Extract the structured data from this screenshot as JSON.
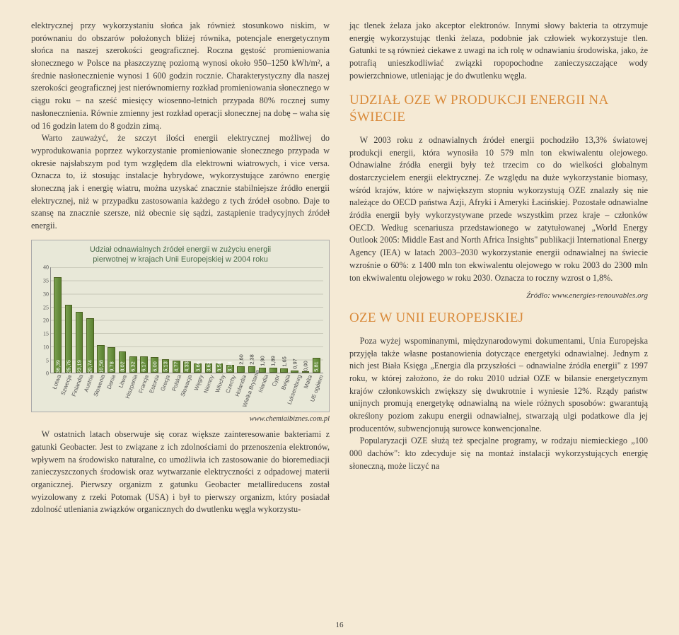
{
  "left": {
    "p1": "elektrycznej przy wykorzystaniu słońca jak również stosunkowo niskim, w porównaniu do obszarów położonych bliżej równika, potencjale energetycznym słońca na naszej szerokości geograficznej. Roczna gęstość promieniowania słonecznego w Polsce na płaszczyznę poziomą wynosi około 950–1250 kWh/m², a średnie nasłonecznienie wynosi 1 600 godzin rocznie. Charakterystyczny dla naszej szerokości geograficznej jest nierównomierny rozkład promieniowania słonecznego w ciągu roku – na sześć miesięcy wiosenno-letnich przypada 80% rocznej sumy nasłonecznienia. Równie zmienny jest rozkład operacji słonecznej na dobę – waha się od 16 godzin latem do 8 godzin zimą.",
    "p2": "Warto zauważyć, że szczyt ilości energii elektrycznej możliwej do wyprodukowania poprzez wykorzystanie promieniowanie słonecznego przypada w okresie najsłabszym pod tym względem dla elektrowni wiatrowych, i vice versa. Oznacza to, iż stosując instalacje hybrydowe, wykorzystujące zarówno energię słoneczną jak i energię wiatru, można uzyskać znacznie stabilniejsze źródło energii elektrycznej, niż w przypadku zastosowania każdego z tych źródeł osobno. Daje to szansę na znacznie szersze, niż obecnie się sądzi, zastąpienie tradycyjnych źródeł energii.",
    "chart_source": "www.chemiaibiznes.com.pl",
    "p3": "W ostatnich latach obserwuje się coraz większe zainteresowanie bakteriami z gatunki Geobacter. Jest to związane z ich zdolnościami do przenoszenia elektronów, wpływem na środowisko naturalne, co umożliwia ich zastosowanie do bioremediacji zanieczyszczonych środowisk oraz wytwarzanie elektryczności z odpadowej materii organicznej. Pierwszy organizm z gatunku Geobacter metallireducens został wyizolowany z rzeki Potomak (USA) i był to pierwszy organizm, który posiadał zdolność utleniania związków organicznych do dwutlenku węgla wykorzystu-"
  },
  "right": {
    "p1": "jąc tlenek żelaza jako akceptor elektronów. Innymi słowy bakteria ta otrzymuje energię wykorzystując tlenki żelaza, podobnie jak człowiek wykorzystuje tlen. Gatunki te są również ciekawe z uwagi na ich rolę w odnawianiu środowiska, jako, że potrafią unieszkodliwiać związki ropopochodne zanieczyszczające wody powierzchniowe, utleniając je do dwutlenku węgla.",
    "h1": "UDZIAŁ OZE W PRODUKCJI ENERGII NA ŚWIECIE",
    "p2": "W 2003 roku z odnawialnych źródeł energii pochodziło 13,3% światowej produkcji energii, która wynosiła 10 579 mln ton ekwiwalentu olejowego. Odnawialne źródła energii były też trzecim co do wielkości globalnym dostarczycielem energii elektrycznej. Ze względu na duże wykorzystanie biomasy, wśród krajów, które w największym stopniu wykorzystują OZE znalazły się nie należące do OECD państwa Azji, Afryki i Ameryki Łacińskiej. Pozostałe odnawialne źródła energii były wykorzystywane przede wszystkim przez kraje – członków OECD. Według scenariusza przedstawionego w zatytułowanej „World Energy Outlook 2005: Middle East and North Africa Insights\" publikacji International Energy Agency (IEA) w latach 2003–2030 wykorzystanie energii odnawialnej na świecie wzrośnie o 60%: z 1400 mln ton ekwiwalentu olejowego w roku 2003 do 2300 mln ton ekwiwalentu olejowego w roku 2030. Oznacza to roczny wzrost o 1,8%.",
    "source": "Źródło: www.energies-renouvables.org",
    "h2": "OZE W UNII EUROPEJSKIEJ",
    "p3": "Poza wyżej wspominanymi, międzynarodowymi dokumentami, Unia Europejska przyjęła także własne postanowienia dotyczące energetyki odnawialnej. Jednym z nich jest Biała Księga „Energia dla przyszłości – odnawialne źródła energii\" z 1997 roku, w której założono, że do roku 2010 udział OZE w bilansie energetycznym krajów członkowskich zwiększy się dwukrotnie i wyniesie 12%. Rządy państw unijnych promują energetykę odnawialną na wiele różnych sposobów: gwarantują określony poziom zakupu energii odnawialnej, stwarzają ulgi podatkowe dla jej producentów, subwencjonują surowce konwencjonalne.",
    "p4": "Popularyzacji OZE służą też specjalne programy, w rodzaju niemieckiego „100 000 dachów\": kto zdecyduje się na montaż instalacji wykorzystujących energię słoneczną, może liczyć na"
  },
  "chart": {
    "title_l1": "Udział odnawialnych źródeł energii w zużyciu energii",
    "title_l2": "pierwotnej w krajach Unii Europejskiej w 2004 roku",
    "ymax": 40,
    "categories": [
      "Łotwa",
      "Szwecja",
      "Finlandia",
      "Austria",
      "Słowenia",
      "Dania",
      "Litwa",
      "Hiszpania",
      "Francja",
      "Estonia",
      "Grecja",
      "Polska",
      "Słowacja",
      "Węgry",
      "Niemcy",
      "Włochy",
      "Czechy",
      "Holandia",
      "Wielka Brytania",
      "Irlandia",
      "Cypr",
      "Belgia",
      "Luksemburg",
      "Malta",
      "UE ogółem"
    ],
    "values": [
      36.39,
      25.75,
      23.19,
      20.74,
      10.58,
      9.78,
      8.02,
      6.32,
      6.17,
      6.0,
      5.13,
      4.77,
      4.33,
      3.66,
      3.63,
      3.58,
      3.14,
      2.6,
      2.38,
      1.9,
      1.89,
      1.65,
      0.97,
      0.0,
      5.81
    ],
    "bar_color_start": "#7aa050",
    "bar_color_end": "#5a8030",
    "bg": "#e8e8d8"
  },
  "page_num": "16"
}
